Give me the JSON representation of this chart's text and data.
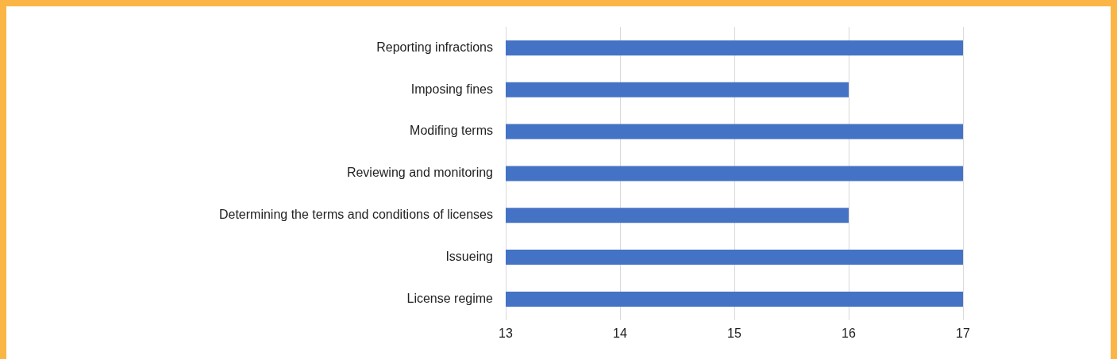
{
  "chart_data": {
    "type": "bar",
    "orientation": "horizontal",
    "categories": [
      "Reporting infractions",
      "Imposing fines",
      "Modifing terms",
      "Reviewing and monitoring",
      "Determining the terms and conditions of licenses",
      "Issueing",
      "License regime"
    ],
    "values": [
      17,
      16,
      17,
      17,
      16,
      17,
      17
    ],
    "color": "#4472c4",
    "xlim": [
      13,
      17
    ],
    "xticks": [
      13,
      14,
      15,
      16,
      17
    ],
    "grid": "x",
    "legend": false
  }
}
